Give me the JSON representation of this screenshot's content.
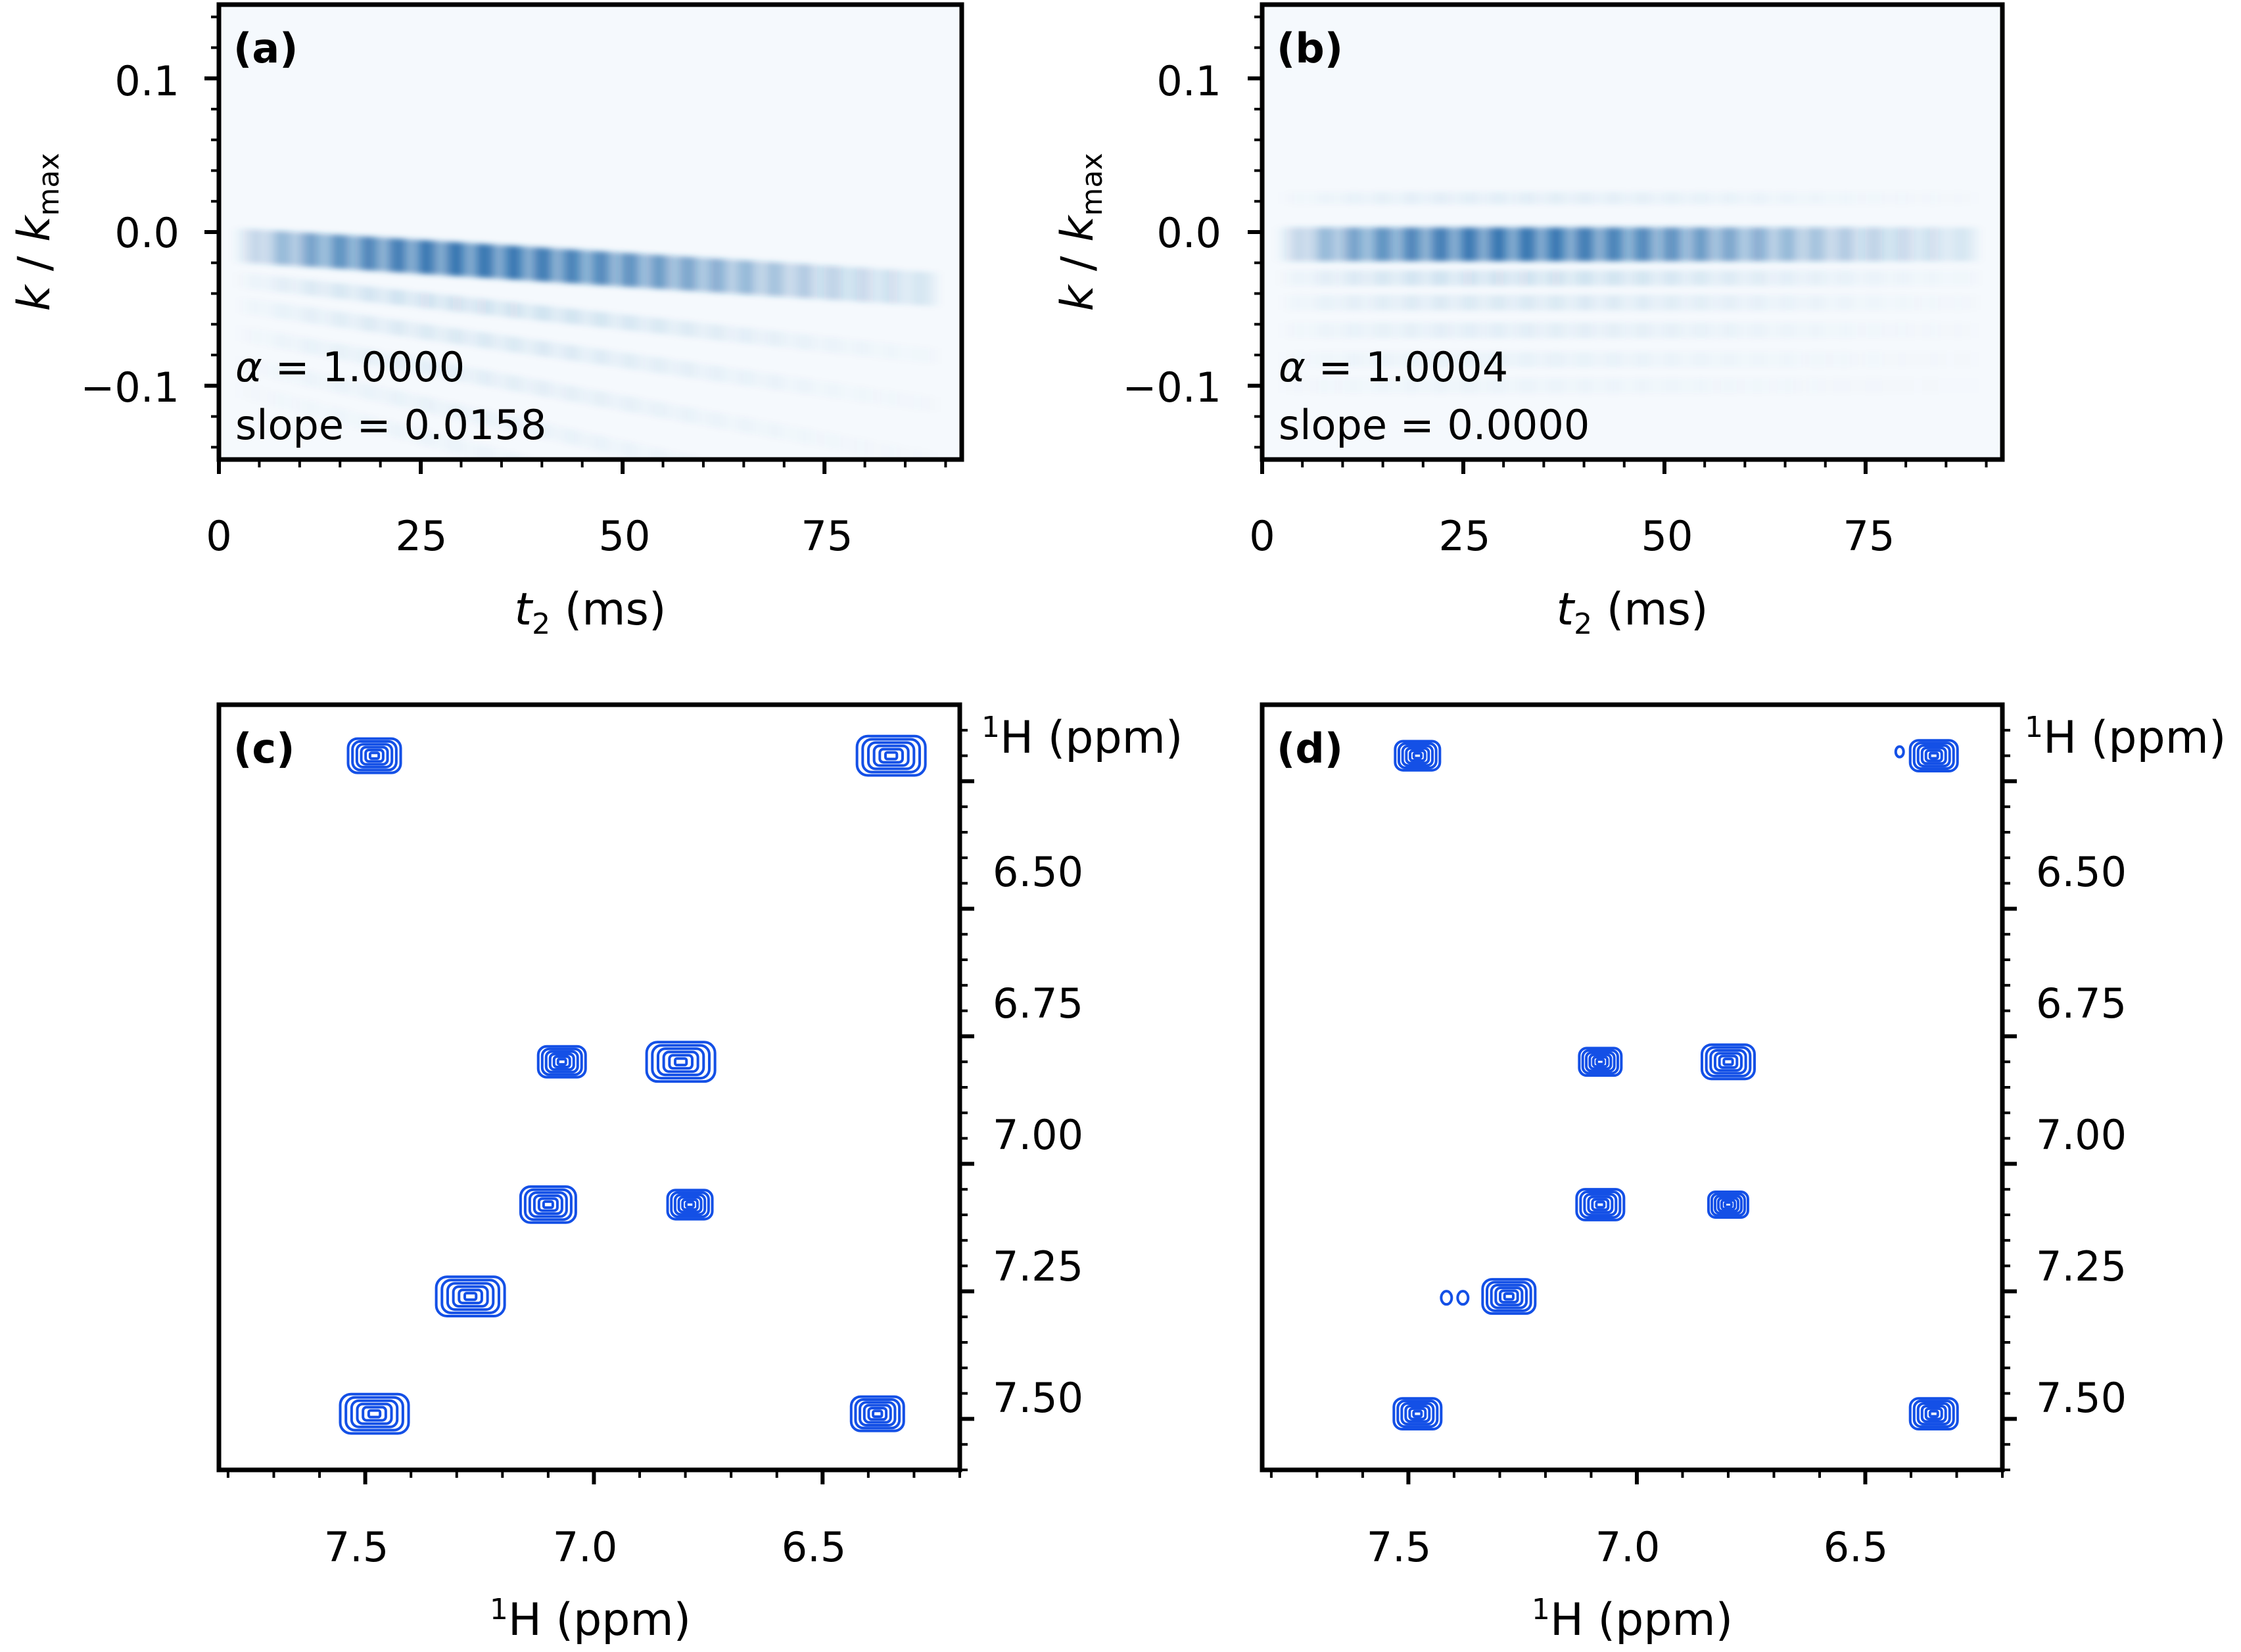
{
  "colors": {
    "heatmap": "#1f66a8",
    "contour": "#1450e6",
    "axes": "#000000",
    "background": "#ffffff"
  },
  "chart_data": [
    {
      "id": "a",
      "type": "heatmap",
      "panel_label": "(a)",
      "xlabel_var": "t",
      "xlabel_sub": "2",
      "xlabel_unit": " (ms)",
      "ylabel_var": "k",
      "ylabel_sep": " / ",
      "ylabel_var2": "k",
      "ylabel_sub": "max",
      "xlim": [
        0,
        92
      ],
      "ylim": [
        -0.148,
        0.148
      ],
      "xticks": [
        "0",
        "25",
        "50",
        "75"
      ],
      "yticks": [
        "0.1",
        "0.0",
        "−0.1"
      ],
      "alpha_symbol": "α",
      "alpha_text": " = 1.0000",
      "slope_text": "slope = 0.0158",
      "slope": 0.0158,
      "ridge_t_range": [
        1,
        88
      ],
      "peak_t": 30
    },
    {
      "id": "b",
      "type": "heatmap",
      "panel_label": "(b)",
      "xlabel_var": "t",
      "xlabel_sub": "2",
      "xlabel_unit": " (ms)",
      "ylabel_var": "k",
      "ylabel_sep": " / ",
      "ylabel_var2": "k",
      "ylabel_sub": "max",
      "xlim": [
        0,
        92
      ],
      "ylim": [
        -0.148,
        0.148
      ],
      "xticks": [
        "0",
        "25",
        "50",
        "75"
      ],
      "yticks": [
        "0.1",
        "0.0",
        "−0.1"
      ],
      "alpha_symbol": "α",
      "alpha_text": " = 1.0004",
      "slope_text": "slope = 0.0000",
      "slope": 0.0,
      "ridge_t_range": [
        1,
        88
      ],
      "peak_t": 30
    },
    {
      "id": "c",
      "type": "contour",
      "panel_label": "(c)",
      "xlabel_sup": "1",
      "xlabel_text": "H (ppm)",
      "ylabel_sup": "1",
      "ylabel_text": "H (ppm)",
      "xlim": [
        7.82,
        6.2
      ],
      "ylim": [
        7.6,
        6.1
      ],
      "xticks": [
        "7.5",
        "7.0",
        "6.5"
      ],
      "yticks": [
        "6.50",
        "6.75",
        "7.00",
        "7.25",
        "7.50"
      ],
      "peaks": [
        {
          "x": 7.48,
          "y": 6.2,
          "size": 1.0
        },
        {
          "x": 6.35,
          "y": 6.2,
          "size": 1.3
        },
        {
          "x": 7.07,
          "y": 6.8,
          "size": 0.9
        },
        {
          "x": 6.81,
          "y": 6.8,
          "size": 1.3
        },
        {
          "x": 7.1,
          "y": 7.08,
          "size": 1.05
        },
        {
          "x": 6.79,
          "y": 7.08,
          "size": 0.85
        },
        {
          "x": 7.27,
          "y": 7.26,
          "size": 1.3
        },
        {
          "x": 7.48,
          "y": 7.49,
          "size": 1.3
        },
        {
          "x": 6.38,
          "y": 7.49,
          "size": 1.0
        }
      ]
    },
    {
      "id": "d",
      "type": "contour",
      "panel_label": "(d)",
      "xlabel_sup": "1",
      "xlabel_text": "H (ppm)",
      "ylabel_sup": "1",
      "ylabel_text": "H (ppm)",
      "xlim": [
        7.82,
        6.2
      ],
      "ylim": [
        7.6,
        6.1
      ],
      "xticks": [
        "7.5",
        "7.0",
        "6.5"
      ],
      "yticks": [
        "6.50",
        "6.75",
        "7.00",
        "7.25",
        "7.50"
      ],
      "peaks": [
        {
          "x": 7.48,
          "y": 6.2,
          "size": 0.85
        },
        {
          "x": 6.35,
          "y": 6.2,
          "size": 0.9
        },
        {
          "x": 7.08,
          "y": 6.8,
          "size": 0.8
        },
        {
          "x": 6.8,
          "y": 6.8,
          "size": 1.0
        },
        {
          "x": 7.08,
          "y": 7.08,
          "size": 0.9
        },
        {
          "x": 6.8,
          "y": 7.08,
          "size": 0.75
        },
        {
          "x": 7.28,
          "y": 7.26,
          "size": 1.0
        },
        {
          "x": 7.48,
          "y": 7.49,
          "size": 0.9
        },
        {
          "x": 6.35,
          "y": 7.49,
          "size": 0.9
        }
      ]
    }
  ]
}
